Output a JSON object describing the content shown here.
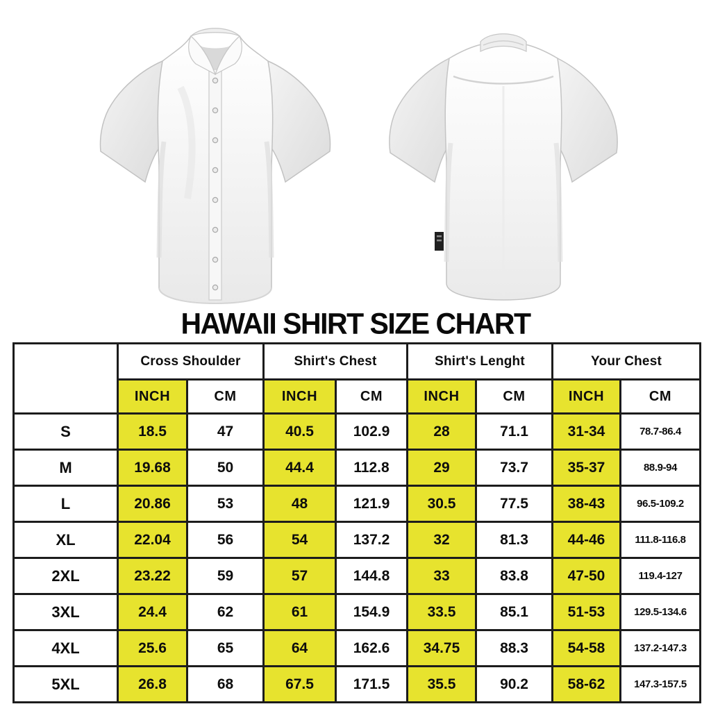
{
  "colors": {
    "highlight_yellow": "#e7e32e",
    "table_border": "#1c1c1c",
    "text": "#0d0d0d",
    "background": "#ffffff"
  },
  "images": {
    "front_shirt": "white-short-sleeve-button-shirt-front",
    "back_shirt": "white-short-sleeve-shirt-back"
  },
  "chart_data": {
    "type": "table",
    "title": "HAWAII SHIRT SIZE CHART",
    "size_column_header": "",
    "column_groups": [
      "Cross Shoulder",
      "Shirt's Chest",
      "Shirt's Lenght",
      "Your Chest"
    ],
    "unit_headers": [
      "INCH",
      "CM"
    ],
    "rows": [
      {
        "size": "S",
        "values": [
          "18.5",
          "47",
          "40.5",
          "102.9",
          "28",
          "71.1",
          "31-34",
          "78.7-86.4"
        ]
      },
      {
        "size": "M",
        "values": [
          "19.68",
          "50",
          "44.4",
          "112.8",
          "29",
          "73.7",
          "35-37",
          "88.9-94"
        ]
      },
      {
        "size": "L",
        "values": [
          "20.86",
          "53",
          "48",
          "121.9",
          "30.5",
          "77.5",
          "38-43",
          "96.5-109.2"
        ]
      },
      {
        "size": "XL",
        "values": [
          "22.04",
          "56",
          "54",
          "137.2",
          "32",
          "81.3",
          "44-46",
          "111.8-116.8"
        ]
      },
      {
        "size": "2XL",
        "values": [
          "23.22",
          "59",
          "57",
          "144.8",
          "33",
          "83.8",
          "47-50",
          "119.4-127"
        ]
      },
      {
        "size": "3XL",
        "values": [
          "24.4",
          "62",
          "61",
          "154.9",
          "33.5",
          "85.1",
          "51-53",
          "129.5-134.6"
        ]
      },
      {
        "size": "4XL",
        "values": [
          "25.6",
          "65",
          "64",
          "162.6",
          "34.75",
          "88.3",
          "54-58",
          "137.2-147.3"
        ]
      },
      {
        "size": "5XL",
        "values": [
          "26.8",
          "68",
          "67.5",
          "171.5",
          "35.5",
          "90.2",
          "58-62",
          "147.3-157.5"
        ]
      }
    ]
  }
}
